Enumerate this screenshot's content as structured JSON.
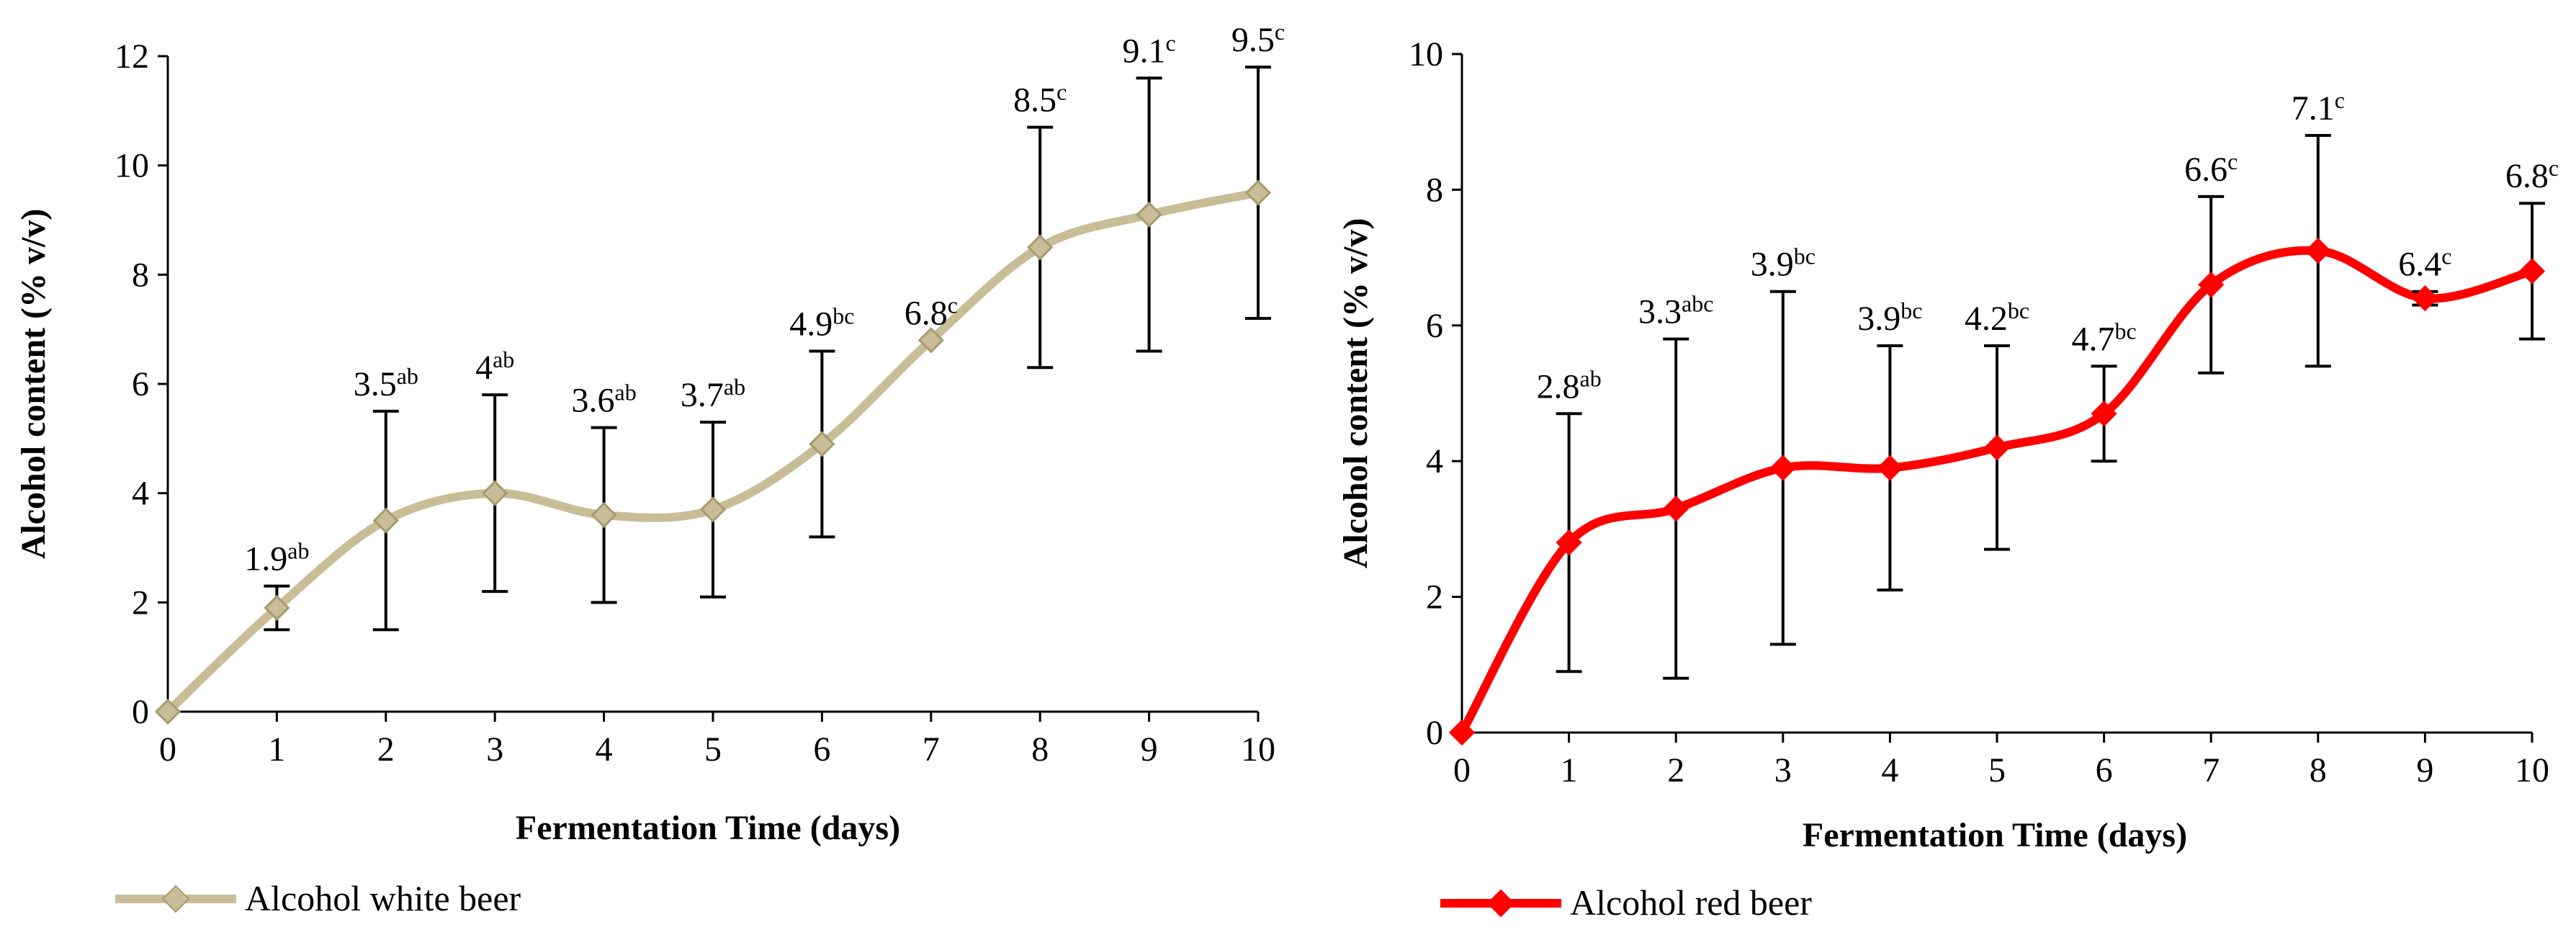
{
  "chart_data": [
    {
      "type": "line",
      "series_name": "Alcohol white beer",
      "color": "#c8bd96",
      "marker": "diamond",
      "xlabel": "Fermentation Time (days)",
      "ylabel": "Alcohol content (% v/v)",
      "xlim": [
        0,
        10
      ],
      "ylim": [
        0,
        12
      ],
      "y_ticks": [
        0,
        2,
        4,
        6,
        8,
        10,
        12
      ],
      "x_ticks": [
        0,
        1,
        2,
        3,
        4,
        5,
        6,
        7,
        8,
        9,
        10
      ],
      "x": [
        0,
        1,
        2,
        3,
        4,
        5,
        6,
        7,
        8,
        9,
        10
      ],
      "values": [
        0,
        1.9,
        3.5,
        4,
        3.6,
        3.7,
        4.9,
        6.8,
        8.5,
        9.1,
        9.5
      ],
      "error_low": [
        null,
        1.5,
        1.5,
        2.2,
        2.0,
        2.1,
        3.2,
        null,
        6.3,
        6.6,
        7.2
      ],
      "error_high": [
        null,
        2.3,
        5.5,
        5.8,
        5.2,
        5.3,
        6.6,
        null,
        10.7,
        11.6,
        11.8
      ],
      "labels": [
        null,
        {
          "value": "1.9",
          "sup": "ab"
        },
        {
          "value": "3.5",
          "sup": "ab"
        },
        {
          "value": "4",
          "sup": "ab"
        },
        {
          "value": "3.6",
          "sup": "ab"
        },
        {
          "value": "3.7",
          "sup": "ab"
        },
        {
          "value": "4.9",
          "sup": "bc"
        },
        {
          "value": "6.8",
          "sup": "c"
        },
        {
          "value": "8.5",
          "sup": "c"
        },
        {
          "value": "9.1",
          "sup": "c"
        },
        {
          "value": "9.5",
          "sup": "c"
        }
      ],
      "legend": "Alcohol white beer"
    },
    {
      "type": "line",
      "series_name": "Alcohol red beer",
      "color": "#ff0000",
      "marker": "diamond",
      "xlabel": "Fermentation Time (days)",
      "ylabel": "Alcohol content (% v/v)",
      "xlim": [
        0,
        10
      ],
      "ylim": [
        0,
        10
      ],
      "y_ticks": [
        0,
        2,
        4,
        6,
        8,
        10
      ],
      "x_ticks": [
        0,
        1,
        2,
        3,
        4,
        5,
        6,
        7,
        8,
        9,
        10
      ],
      "x": [
        0,
        1,
        2,
        3,
        4,
        5,
        6,
        7,
        8,
        9,
        10
      ],
      "values": [
        0,
        2.8,
        3.3,
        3.9,
        3.9,
        4.2,
        4.7,
        6.6,
        7.1,
        6.4,
        6.8
      ],
      "error_low": [
        null,
        0.9,
        0.8,
        1.3,
        2.1,
        2.7,
        4.0,
        5.3,
        5.4,
        6.3,
        5.8
      ],
      "error_high": [
        null,
        4.7,
        5.8,
        6.5,
        5.7,
        5.7,
        5.4,
        7.9,
        8.8,
        6.5,
        7.8
      ],
      "labels": [
        null,
        {
          "value": "2.8",
          "sup": "ab"
        },
        {
          "value": "3.3",
          "sup": "abc"
        },
        {
          "value": "3.9",
          "sup": "bc"
        },
        {
          "value": "3.9",
          "sup": "bc"
        },
        {
          "value": "4.2",
          "sup": "bc"
        },
        {
          "value": "4.7",
          "sup": "bc"
        },
        {
          "value": "6.6",
          "sup": "c"
        },
        {
          "value": "7.1",
          "sup": "c"
        },
        {
          "value": "6.4",
          "sup": "c"
        },
        {
          "value": "6.8",
          "sup": "c"
        }
      ],
      "legend": "Alcohol red beer"
    }
  ]
}
